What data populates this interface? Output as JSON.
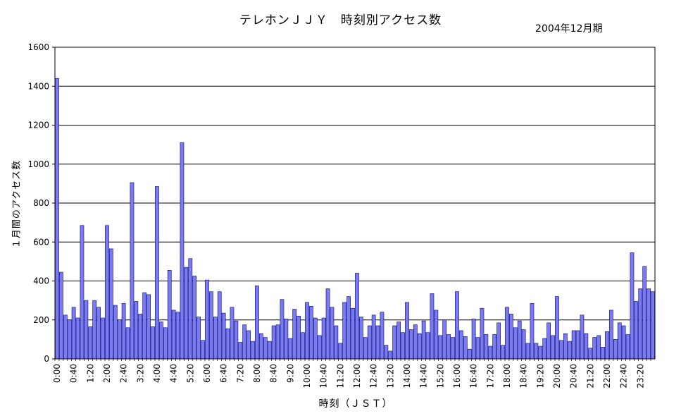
{
  "chart_data": {
    "type": "bar",
    "title": "テレホンＪＪＹ　時刻別アクセス数",
    "period": "2004年12月期",
    "xlabel": "時刻（ＪＳＴ）",
    "ylabel": "１月間のアクセス数",
    "ylim": [
      0,
      1600
    ],
    "yticks": [
      0,
      200,
      400,
      600,
      800,
      1000,
      1200,
      1400,
      1600
    ],
    "grid": true,
    "bar_color": "#7b7bf0",
    "bar_edge_color": "#000080",
    "x_tick_labels": [
      "0:00",
      "0:40",
      "1:20",
      "2:00",
      "2:40",
      "3:20",
      "4:00",
      "4:40",
      "5:20",
      "6:00",
      "6:40",
      "7:20",
      "8:00",
      "8:40",
      "9:20",
      "10:00",
      "10:40",
      "11:20",
      "12:00",
      "12:40",
      "13:20",
      "14:00",
      "14:40",
      "15:20",
      "16:00",
      "16:40",
      "17:20",
      "18:00",
      "18:40",
      "19:20",
      "20:00",
      "20:40",
      "21:20",
      "22:00",
      "22:40",
      "23:20"
    ],
    "values": [
      1440,
      445,
      225,
      200,
      265,
      210,
      685,
      300,
      165,
      300,
      265,
      210,
      685,
      565,
      275,
      200,
      285,
      160,
      905,
      295,
      230,
      340,
      330,
      165,
      885,
      190,
      160,
      455,
      250,
      240,
      1110,
      470,
      515,
      425,
      215,
      95,
      405,
      345,
      215,
      345,
      235,
      155,
      265,
      195,
      85,
      175,
      145,
      90,
      375,
      130,
      110,
      90,
      170,
      175,
      305,
      205,
      105,
      255,
      220,
      135,
      290,
      270,
      210,
      120,
      210,
      360,
      265,
      170,
      80,
      290,
      320,
      260,
      440,
      215,
      110,
      170,
      225,
      170,
      240,
      70,
      40,
      170,
      190,
      135,
      290,
      150,
      175,
      130,
      195,
      135,
      335,
      250,
      120,
      200,
      125,
      110,
      345,
      145,
      115,
      50,
      205,
      110,
      260,
      125,
      65,
      125,
      185,
      70,
      265,
      230,
      160,
      195,
      150,
      80,
      285,
      80,
      65,
      105,
      185,
      120,
      320,
      95,
      130,
      90,
      145,
      145,
      225,
      130,
      55,
      110,
      120,
      60,
      140,
      250,
      100,
      185,
      170,
      125,
      545,
      295,
      360,
      475,
      360,
      345
    ]
  }
}
